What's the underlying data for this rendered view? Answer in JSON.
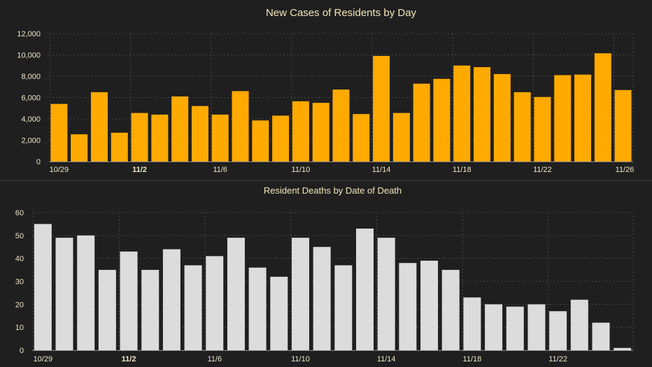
{
  "chart_data": [
    {
      "type": "bar",
      "title": "New Cases of Residents by Day",
      "bar_color": "#ffaa00",
      "xlabel": "",
      "ylabel": "",
      "ylim": [
        0,
        12000
      ],
      "yticks": [
        0,
        2000,
        4000,
        6000,
        8000,
        10000,
        12000
      ],
      "ytick_labels": [
        "0",
        "2,000",
        "4,000",
        "6,000",
        "8,000",
        "10,000",
        "12,000"
      ],
      "categories": [
        "10/29",
        "10/30",
        "10/31",
        "11/1",
        "11/2",
        "11/3",
        "11/4",
        "11/5",
        "11/6",
        "11/7",
        "11/8",
        "11/9",
        "11/10",
        "11/11",
        "11/12",
        "11/13",
        "11/14",
        "11/15",
        "11/16",
        "11/17",
        "11/18",
        "11/19",
        "11/20",
        "11/21",
        "11/22",
        "11/23",
        "11/24",
        "11/25",
        "11/26"
      ],
      "values": [
        5400,
        2550,
        6500,
        2700,
        4550,
        4400,
        6100,
        5200,
        4400,
        6600,
        3850,
        4300,
        5650,
        5500,
        6750,
        4450,
        9900,
        4550,
        7300,
        7750,
        9000,
        8850,
        8200,
        6500,
        6050,
        8100,
        8150,
        10150,
        6700
      ],
      "xtick_labels": [
        "10/29",
        "11/2",
        "11/6",
        "11/10",
        "11/14",
        "11/18",
        "11/22",
        "11/26"
      ],
      "xtick_indices": [
        0,
        4,
        8,
        12,
        16,
        20,
        24,
        28
      ],
      "grid": true
    },
    {
      "type": "bar",
      "title": "Resident Deaths by Date of Death",
      "bar_color": "#dcdcdc",
      "xlabel": "",
      "ylabel": "",
      "ylim": [
        0,
        60
      ],
      "yticks": [
        0,
        10,
        20,
        30,
        40,
        50,
        60
      ],
      "ytick_labels": [
        "0",
        "10",
        "20",
        "30",
        "40",
        "50",
        "60"
      ],
      "categories": [
        "10/29",
        "10/30",
        "10/31",
        "11/1",
        "11/2",
        "11/3",
        "11/4",
        "11/5",
        "11/6",
        "11/7",
        "11/8",
        "11/9",
        "11/10",
        "11/11",
        "11/12",
        "11/13",
        "11/14",
        "11/15",
        "11/16",
        "11/17",
        "11/18",
        "11/19",
        "11/20",
        "11/21",
        "11/22",
        "11/23",
        "11/24",
        "11/25"
      ],
      "values": [
        55,
        49,
        50,
        35,
        43,
        35,
        44,
        37,
        41,
        49,
        36,
        32,
        49,
        45,
        37,
        53,
        49,
        38,
        39,
        35,
        23,
        20,
        19,
        20,
        17,
        22,
        12,
        1
      ],
      "xtick_labels": [
        "10/29",
        "11/2",
        "11/6",
        "11/10",
        "11/14",
        "11/18",
        "11/22"
      ],
      "xtick_indices": [
        0,
        4,
        8,
        12,
        16,
        20,
        24
      ],
      "grid": true
    }
  ]
}
